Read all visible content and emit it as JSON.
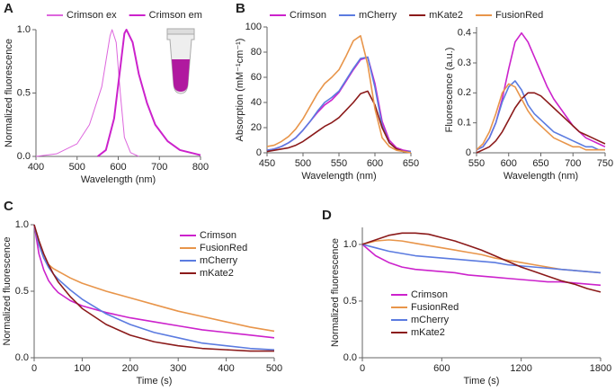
{
  "chart_data": [
    {
      "type": "line",
      "label": "A",
      "xlabel": "Wavelength (nm)",
      "ylabel": "Normalized fluorescence",
      "legend": "top",
      "xlim": [
        400,
        800
      ],
      "xticks": [
        400,
        500,
        600,
        700,
        800
      ],
      "ylim": [
        0,
        1.0
      ],
      "yticks": [
        {
          "value": 0,
          "label": "0.0"
        },
        {
          "value": 0.5,
          "label": "0.5"
        },
        {
          "value": 1.0,
          "label": "1.0"
        }
      ],
      "series": [
        {
          "name": "Crimson ex",
          "color": "#dd66dd",
          "width": 1,
          "x": [
            400,
            450,
            500,
            530,
            550,
            560,
            570,
            580,
            585,
            595,
            605,
            615,
            630,
            650
          ],
          "values": [
            0,
            0.02,
            0.1,
            0.25,
            0.45,
            0.55,
            0.75,
            0.95,
            1.0,
            0.9,
            0.5,
            0.15,
            0.03,
            0
          ]
        },
        {
          "name": "Crimson em",
          "color": "#cc22cc",
          "width": 2,
          "x": [
            550,
            570,
            590,
            605,
            615,
            620,
            635,
            650,
            670,
            690,
            720,
            750,
            800
          ],
          "values": [
            0,
            0.05,
            0.3,
            0.7,
            0.97,
            1.0,
            0.9,
            0.65,
            0.42,
            0.25,
            0.12,
            0.05,
            0.01
          ]
        }
      ]
    },
    {
      "type": "line",
      "label": "B",
      "xlabel": "Wavelength (nm)",
      "ylabel": "Absorption (mM⁻¹cm⁻¹)",
      "legend": "top",
      "xlim": [
        450,
        650
      ],
      "xticks": [
        450,
        500,
        550,
        600,
        650
      ],
      "ylim": [
        0,
        100
      ],
      "yticks": [
        0,
        20,
        40,
        60,
        80,
        100
      ],
      "x": [
        450,
        460,
        470,
        480,
        490,
        500,
        510,
        520,
        530,
        540,
        550,
        560,
        570,
        580,
        590,
        600,
        610,
        620,
        630,
        640,
        650
      ],
      "series": [
        {
          "name": "Crimson",
          "color": "#cc22cc",
          "values": [
            2,
            3,
            5,
            8,
            12,
            18,
            25,
            32,
            38,
            42,
            48,
            57,
            66,
            74,
            76,
            55,
            25,
            10,
            4,
            2,
            1
          ]
        },
        {
          "name": "mCherry",
          "color": "#5b7be0",
          "values": [
            2,
            3,
            5,
            8,
            12,
            18,
            25,
            33,
            40,
            44,
            49,
            58,
            67,
            75,
            76,
            52,
            22,
            8,
            3,
            1,
            1
          ]
        },
        {
          "name": "mKate2",
          "color": "#8b1a1a",
          "values": [
            1,
            2,
            3,
            4,
            6,
            9,
            13,
            17,
            21,
            24,
            28,
            34,
            40,
            47,
            49,
            38,
            20,
            8,
            3,
            1,
            0
          ]
        },
        {
          "name": "FusionRed",
          "color": "#e8954a",
          "values": [
            5,
            6,
            9,
            13,
            19,
            27,
            37,
            47,
            55,
            60,
            66,
            77,
            89,
            93,
            70,
            35,
            12,
            5,
            2,
            1,
            0
          ]
        }
      ]
    },
    {
      "type": "line",
      "xlabel": "Wavelength (nm)",
      "ylabel": "Fluorescence (a.u.)",
      "xlim": [
        550,
        750
      ],
      "xticks": [
        550,
        600,
        650,
        700,
        750
      ],
      "ylim": [
        0,
        0.42
      ],
      "yticks": [
        0,
        0.1,
        0.2,
        0.3,
        0.4
      ],
      "x": [
        550,
        560,
        570,
        580,
        590,
        600,
        610,
        620,
        630,
        640,
        650,
        660,
        670,
        680,
        690,
        700,
        710,
        720,
        730,
        740,
        750
      ],
      "series": [
        {
          "color": "#cc22cc",
          "values": [
            0.01,
            0.02,
            0.05,
            0.1,
            0.18,
            0.28,
            0.37,
            0.4,
            0.37,
            0.32,
            0.27,
            0.22,
            0.18,
            0.15,
            0.12,
            0.09,
            0.07,
            0.05,
            0.04,
            0.03,
            0.02
          ]
        },
        {
          "color": "#5b7be0",
          "values": [
            0.01,
            0.02,
            0.05,
            0.1,
            0.17,
            0.22,
            0.24,
            0.21,
            0.16,
            0.13,
            0.11,
            0.09,
            0.07,
            0.06,
            0.05,
            0.04,
            0.03,
            0.02,
            0.02,
            0.01,
            0.01
          ]
        },
        {
          "color": "#8b1a1a",
          "values": [
            0,
            0.01,
            0.02,
            0.04,
            0.07,
            0.11,
            0.15,
            0.18,
            0.2,
            0.2,
            0.19,
            0.17,
            0.15,
            0.13,
            0.11,
            0.09,
            0.07,
            0.06,
            0.05,
            0.04,
            0.03
          ]
        },
        {
          "color": "#e8954a",
          "values": [
            0.01,
            0.03,
            0.07,
            0.13,
            0.2,
            0.23,
            0.22,
            0.18,
            0.14,
            0.11,
            0.09,
            0.07,
            0.05,
            0.04,
            0.03,
            0.02,
            0.02,
            0.01,
            0.01,
            0.01,
            0.01
          ]
        }
      ]
    },
    {
      "type": "line",
      "label": "C",
      "xlabel": "Time (s)",
      "ylabel": "Normalized fluorescence",
      "legend": "right",
      "xlim": [
        0,
        500
      ],
      "xticks": [
        0,
        100,
        200,
        300,
        400,
        500
      ],
      "ylim": [
        0,
        1.0
      ],
      "yticks": [
        {
          "value": 0,
          "label": "0.0"
        },
        {
          "value": 0.5,
          "label": "0.5"
        },
        {
          "value": 1.0,
          "label": "1.0"
        }
      ],
      "x": [
        0,
        10,
        20,
        30,
        40,
        50,
        75,
        100,
        150,
        200,
        250,
        300,
        350,
        400,
        450,
        500
      ],
      "series": [
        {
          "name": "Crimson",
          "color": "#cc22cc",
          "values": [
            1,
            0.78,
            0.66,
            0.58,
            0.53,
            0.49,
            0.43,
            0.39,
            0.34,
            0.3,
            0.27,
            0.24,
            0.21,
            0.19,
            0.17,
            0.15
          ]
        },
        {
          "name": "FusionRed",
          "color": "#e8954a",
          "values": [
            1,
            0.85,
            0.75,
            0.7,
            0.67,
            0.65,
            0.6,
            0.56,
            0.5,
            0.45,
            0.4,
            0.35,
            0.31,
            0.27,
            0.23,
            0.2
          ]
        },
        {
          "name": "mCherry",
          "color": "#5b7be0",
          "values": [
            1,
            0.85,
            0.75,
            0.68,
            0.63,
            0.59,
            0.51,
            0.44,
            0.33,
            0.25,
            0.19,
            0.15,
            0.11,
            0.09,
            0.07,
            0.06
          ]
        },
        {
          "name": "mKate2",
          "color": "#8b1a1a",
          "values": [
            1,
            0.88,
            0.78,
            0.7,
            0.63,
            0.57,
            0.46,
            0.37,
            0.25,
            0.17,
            0.12,
            0.09,
            0.07,
            0.06,
            0.05,
            0.05
          ]
        }
      ]
    },
    {
      "type": "line",
      "label": "D",
      "xlabel": "Time (s)",
      "ylabel": "Normalized fluorescence",
      "legend": "lower left",
      "xlim": [
        0,
        1800
      ],
      "xticks": [
        0,
        600,
        1200,
        1800
      ],
      "ylim": [
        0,
        1.15
      ],
      "yticks": [
        {
          "value": 0,
          "label": "0.0"
        },
        {
          "value": 0.5,
          "label": "0.5"
        },
        {
          "value": 1.0,
          "label": "1.0"
        }
      ],
      "x": [
        0,
        100,
        200,
        300,
        400,
        500,
        600,
        700,
        800,
        900,
        1000,
        1100,
        1200,
        1300,
        1400,
        1500,
        1600,
        1700,
        1800
      ],
      "series": [
        {
          "name": "Crimson",
          "color": "#cc22cc",
          "values": [
            1,
            0.9,
            0.84,
            0.8,
            0.78,
            0.77,
            0.76,
            0.75,
            0.73,
            0.72,
            0.71,
            0.7,
            0.69,
            0.68,
            0.67,
            0.67,
            0.66,
            0.65,
            0.64
          ]
        },
        {
          "name": "FusionRed",
          "color": "#e8954a",
          "values": [
            1,
            1.03,
            1.04,
            1.03,
            1.01,
            0.99,
            0.97,
            0.95,
            0.93,
            0.91,
            0.88,
            0.86,
            0.84,
            0.82,
            0.8,
            0.78,
            0.77,
            0.76,
            0.75
          ]
        },
        {
          "name": "mCherry",
          "color": "#5b7be0",
          "values": [
            1,
            0.97,
            0.94,
            0.92,
            0.9,
            0.89,
            0.88,
            0.87,
            0.86,
            0.85,
            0.84,
            0.82,
            0.81,
            0.8,
            0.79,
            0.78,
            0.77,
            0.76,
            0.75
          ]
        },
        {
          "name": "mKate2",
          "color": "#8b1a1a",
          "values": [
            1,
            1.04,
            1.08,
            1.1,
            1.1,
            1.09,
            1.06,
            1.03,
            0.99,
            0.95,
            0.9,
            0.85,
            0.8,
            0.76,
            0.72,
            0.68,
            0.65,
            0.61,
            0.58
          ]
        }
      ]
    }
  ]
}
